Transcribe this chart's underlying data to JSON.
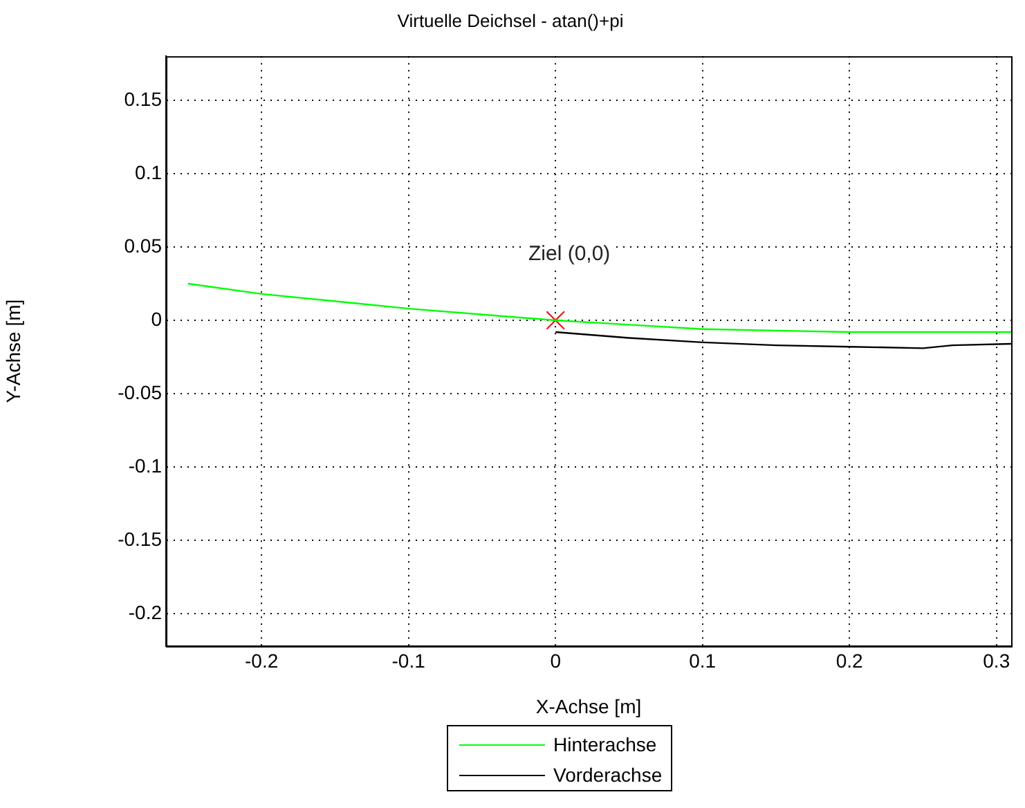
{
  "chart_data": {
    "type": "line",
    "title": "Virtuelle Deichsel - atan()+pi",
    "xlabel": "X-Achse [m]",
    "ylabel": "Y-Achse [m]",
    "xlim": [
      -0.265,
      0.31
    ],
    "xticks": [
      -0.2,
      -0.1,
      0,
      0.1,
      0.2,
      0.3
    ],
    "ylim": [
      -0.222,
      0.18
    ],
    "yticks": [
      -0.2,
      -0.15,
      -0.1,
      -0.05,
      0,
      0.05,
      0.1,
      0.15
    ],
    "grid": true,
    "legend": "bottom",
    "marker": "none",
    "line_style": "solid",
    "annotations": [
      {
        "text": "Ziel (0,0)",
        "x": 0,
        "y": 0
      }
    ],
    "series": [
      {
        "name": "Hinterachse",
        "color": "#00ff00",
        "x": [
          -0.25,
          -0.2,
          -0.1,
          0,
          0.05,
          0.1,
          0.15,
          0.2,
          0.31
        ],
        "values": [
          0.025,
          0.018,
          0.008,
          0,
          -0.003,
          -0.006,
          -0.007,
          -0.008,
          -0.008
        ]
      },
      {
        "name": "Vorderachse",
        "color": "#000000",
        "x": [
          0,
          0.05,
          0.1,
          0.15,
          0.2,
          0.25,
          0.27,
          0.31
        ],
        "values": [
          -0.008,
          -0.012,
          -0.015,
          -0.017,
          -0.018,
          -0.019,
          -0.017,
          -0.016
        ]
      },
      {
        "type": "scatter",
        "marker": "cross",
        "color": "#ff0000",
        "x": [
          0
        ],
        "values": [
          0
        ]
      }
    ]
  }
}
